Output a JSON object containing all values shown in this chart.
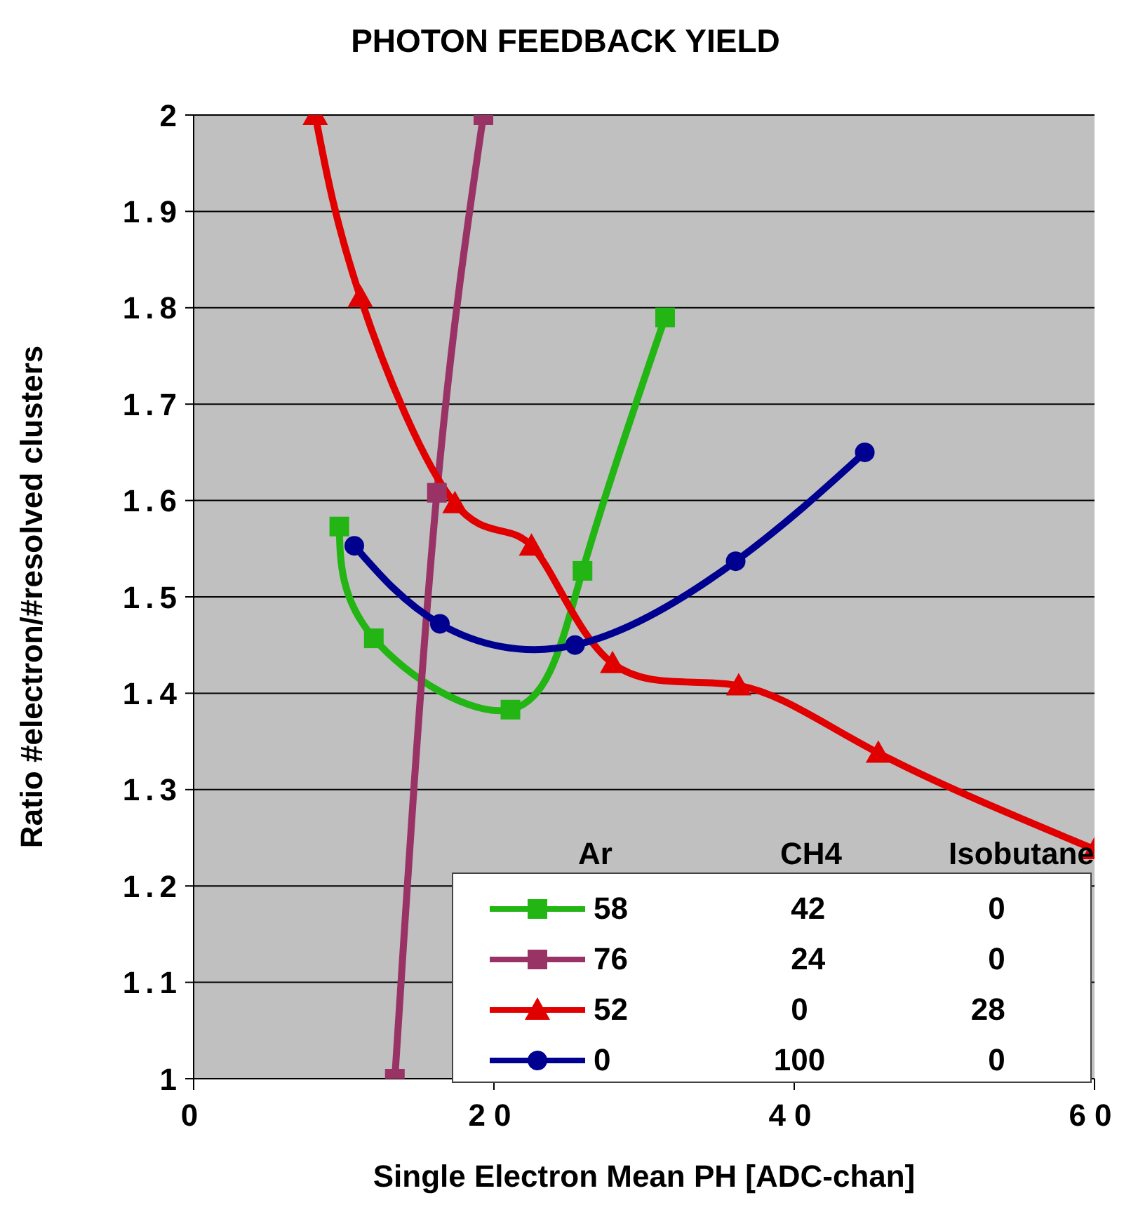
{
  "chart_data": {
    "type": "line",
    "title": "PHOTON FEEDBACK YIELD",
    "xlabel": "Single  Electron  Mean  PH  [ADC-chan]",
    "ylabel": "Ratio  #electron/#resolved  clusters",
    "legend_title": "Ar CH4 Isobutane",
    "legend": "bottom right",
    "grid": "y",
    "xlim": [
      0,
      60
    ],
    "xticks": [
      0,
      20,
      40,
      60
    ],
    "ylim": [
      1,
      2
    ],
    "yticks": [
      1,
      1.1,
      1.2,
      1.3,
      1.4,
      1.5,
      1.6,
      1.7,
      1.8,
      1.9,
      2
    ],
    "series": [
      {
        "name": "58 42 0",
        "color": "#22b514",
        "marker": "square",
        "x": [
          9.7,
          12.0,
          21.1,
          25.9,
          31.4
        ],
        "values": [
          1.573,
          1.457,
          1.383,
          1.527,
          1.79
        ]
      },
      {
        "name": "76 24 0",
        "color": "#993366",
        "marker": "square",
        "x": [
          13.4,
          16.2,
          19.3
        ],
        "values": [
          1.0,
          1.608,
          2.0
        ]
      },
      {
        "name": "52 0 28",
        "color": "#e00000",
        "marker": "triangle",
        "x": [
          8.1,
          11.1,
          17.4,
          22.5,
          27.9,
          36.3,
          45.6,
          60
        ],
        "values": [
          2.0,
          1.811,
          1.597,
          1.553,
          1.431,
          1.408,
          1.338,
          1.238
        ]
      },
      {
        "name": "0 100 0",
        "color": "#000090",
        "marker": "circle",
        "x": [
          10.7,
          16.4,
          25.4,
          36.1,
          44.7
        ],
        "values": [
          1.553,
          1.472,
          1.45,
          1.537,
          1.65
        ]
      }
    ]
  }
}
